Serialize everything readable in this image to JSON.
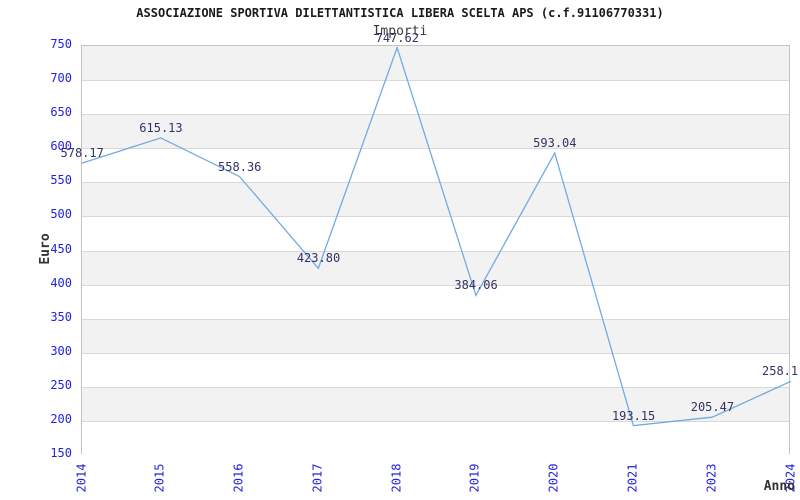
{
  "header": {
    "title": "ASSOCIAZIONE SPORTIVA DILETTANTISTICA LIBERA SCELTA APS (c.f.91106770331)",
    "subtitle": "Importi"
  },
  "chart_data": {
    "type": "line",
    "title": "Importi",
    "xlabel": "Anno",
    "ylabel": "Euro",
    "categories": [
      "2014",
      "2015",
      "2016",
      "2017",
      "2018",
      "2019",
      "2020",
      "2021",
      "2023",
      "2024"
    ],
    "values": [
      578.17,
      615.13,
      558.36,
      423.8,
      747.62,
      384.06,
      593.04,
      193.15,
      205.47,
      258.1
    ],
    "point_labels": [
      "578.17",
      "615.13",
      "558.36",
      "423.80",
      "747.62",
      "384.06",
      "593.04",
      "193.15",
      "205.47",
      "258.1"
    ],
    "ylim": [
      150,
      750
    ],
    "y_tick_step": 50,
    "y_ticks": [
      150,
      200,
      250,
      300,
      350,
      400,
      450,
      500,
      550,
      600,
      650,
      700,
      750
    ],
    "grid": "horizontal-only",
    "legend": "none",
    "markers": "none",
    "colors": {
      "line": "#74a9e2",
      "tick_labels": "#2323dd",
      "point_labels": "#333366",
      "band": "#f2f2f2",
      "gridline": "#d9d9d9",
      "plot_border": "#c4c4c4",
      "title": "#1a1a1a",
      "axis_titles": "#333333"
    }
  }
}
